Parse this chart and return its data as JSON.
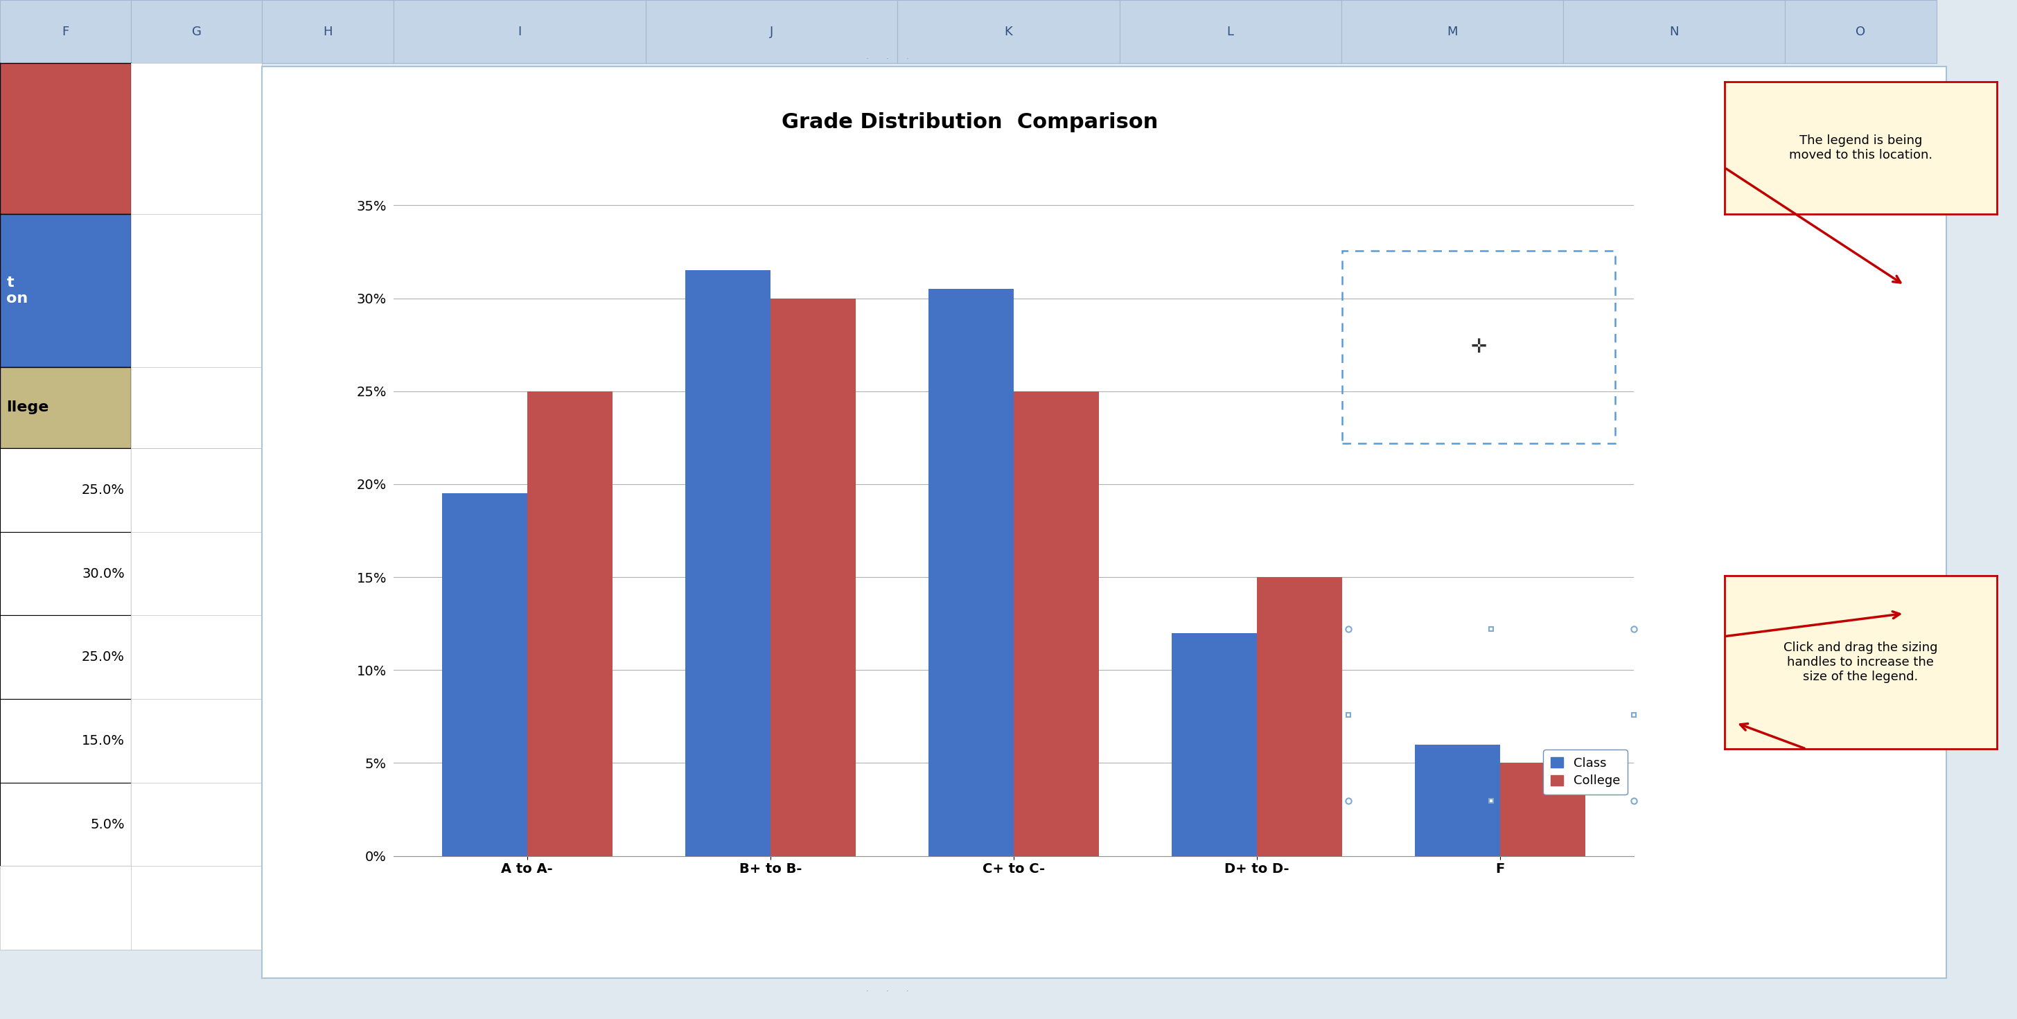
{
  "title": "Grade Distribution  Comparison",
  "categories": [
    "A to A-",
    "B+ to B-",
    "C+ to C-",
    "D+ to D-",
    "F"
  ],
  "class_values": [
    0.195,
    0.315,
    0.305,
    0.12,
    0.06
  ],
  "college_values": [
    0.25,
    0.3,
    0.25,
    0.15,
    0.05
  ],
  "class_color": "#4472C4",
  "college_color": "#C0504D",
  "bar_width": 0.35,
  "ylim": [
    0,
    0.37
  ],
  "yticks": [
    0,
    0.05,
    0.1,
    0.15,
    0.2,
    0.25,
    0.3,
    0.35
  ],
  "ytick_labels": [
    "0%",
    "5%",
    "10%",
    "15%",
    "20%",
    "25%",
    "30%",
    "35%"
  ],
  "legend_class": "Class",
  "legend_college": "College",
  "chart_bg": "#FFFFFF",
  "outer_bg": "#E0E8F0",
  "spreadsheet_header_bg": "#C5D5E8",
  "spreadsheet_cell_bg": "#FFFFFF",
  "grid_color": "#B0B0B0",
  "title_fontsize": 22,
  "tick_fontsize": 14,
  "label_fontsize": 14,
  "legend_fontsize": 13,
  "annotation1_text": "The legend is being\nmoved to this location.",
  "annotation2_text": "Click and drag the sizing\nhandles to increase the\nsize of the legend.",
  "ann_bg": "#FFF8DC",
  "ann_edge": "#C00000",
  "arrow_color": "#C00000",
  "col_f_red_bg": "#C0504D",
  "col_f_blue_bg": "#4472C4",
  "col_f_tan_bg": "#C5B983",
  "col_f_text_blue": "white",
  "col_f_text_tan": "black",
  "sidebar_texts": [
    "t\non",
    "llege"
  ],
  "sidebar_values": [
    "25.0%",
    "30.0%",
    "25.0%",
    "15.0%",
    "5.0%"
  ]
}
